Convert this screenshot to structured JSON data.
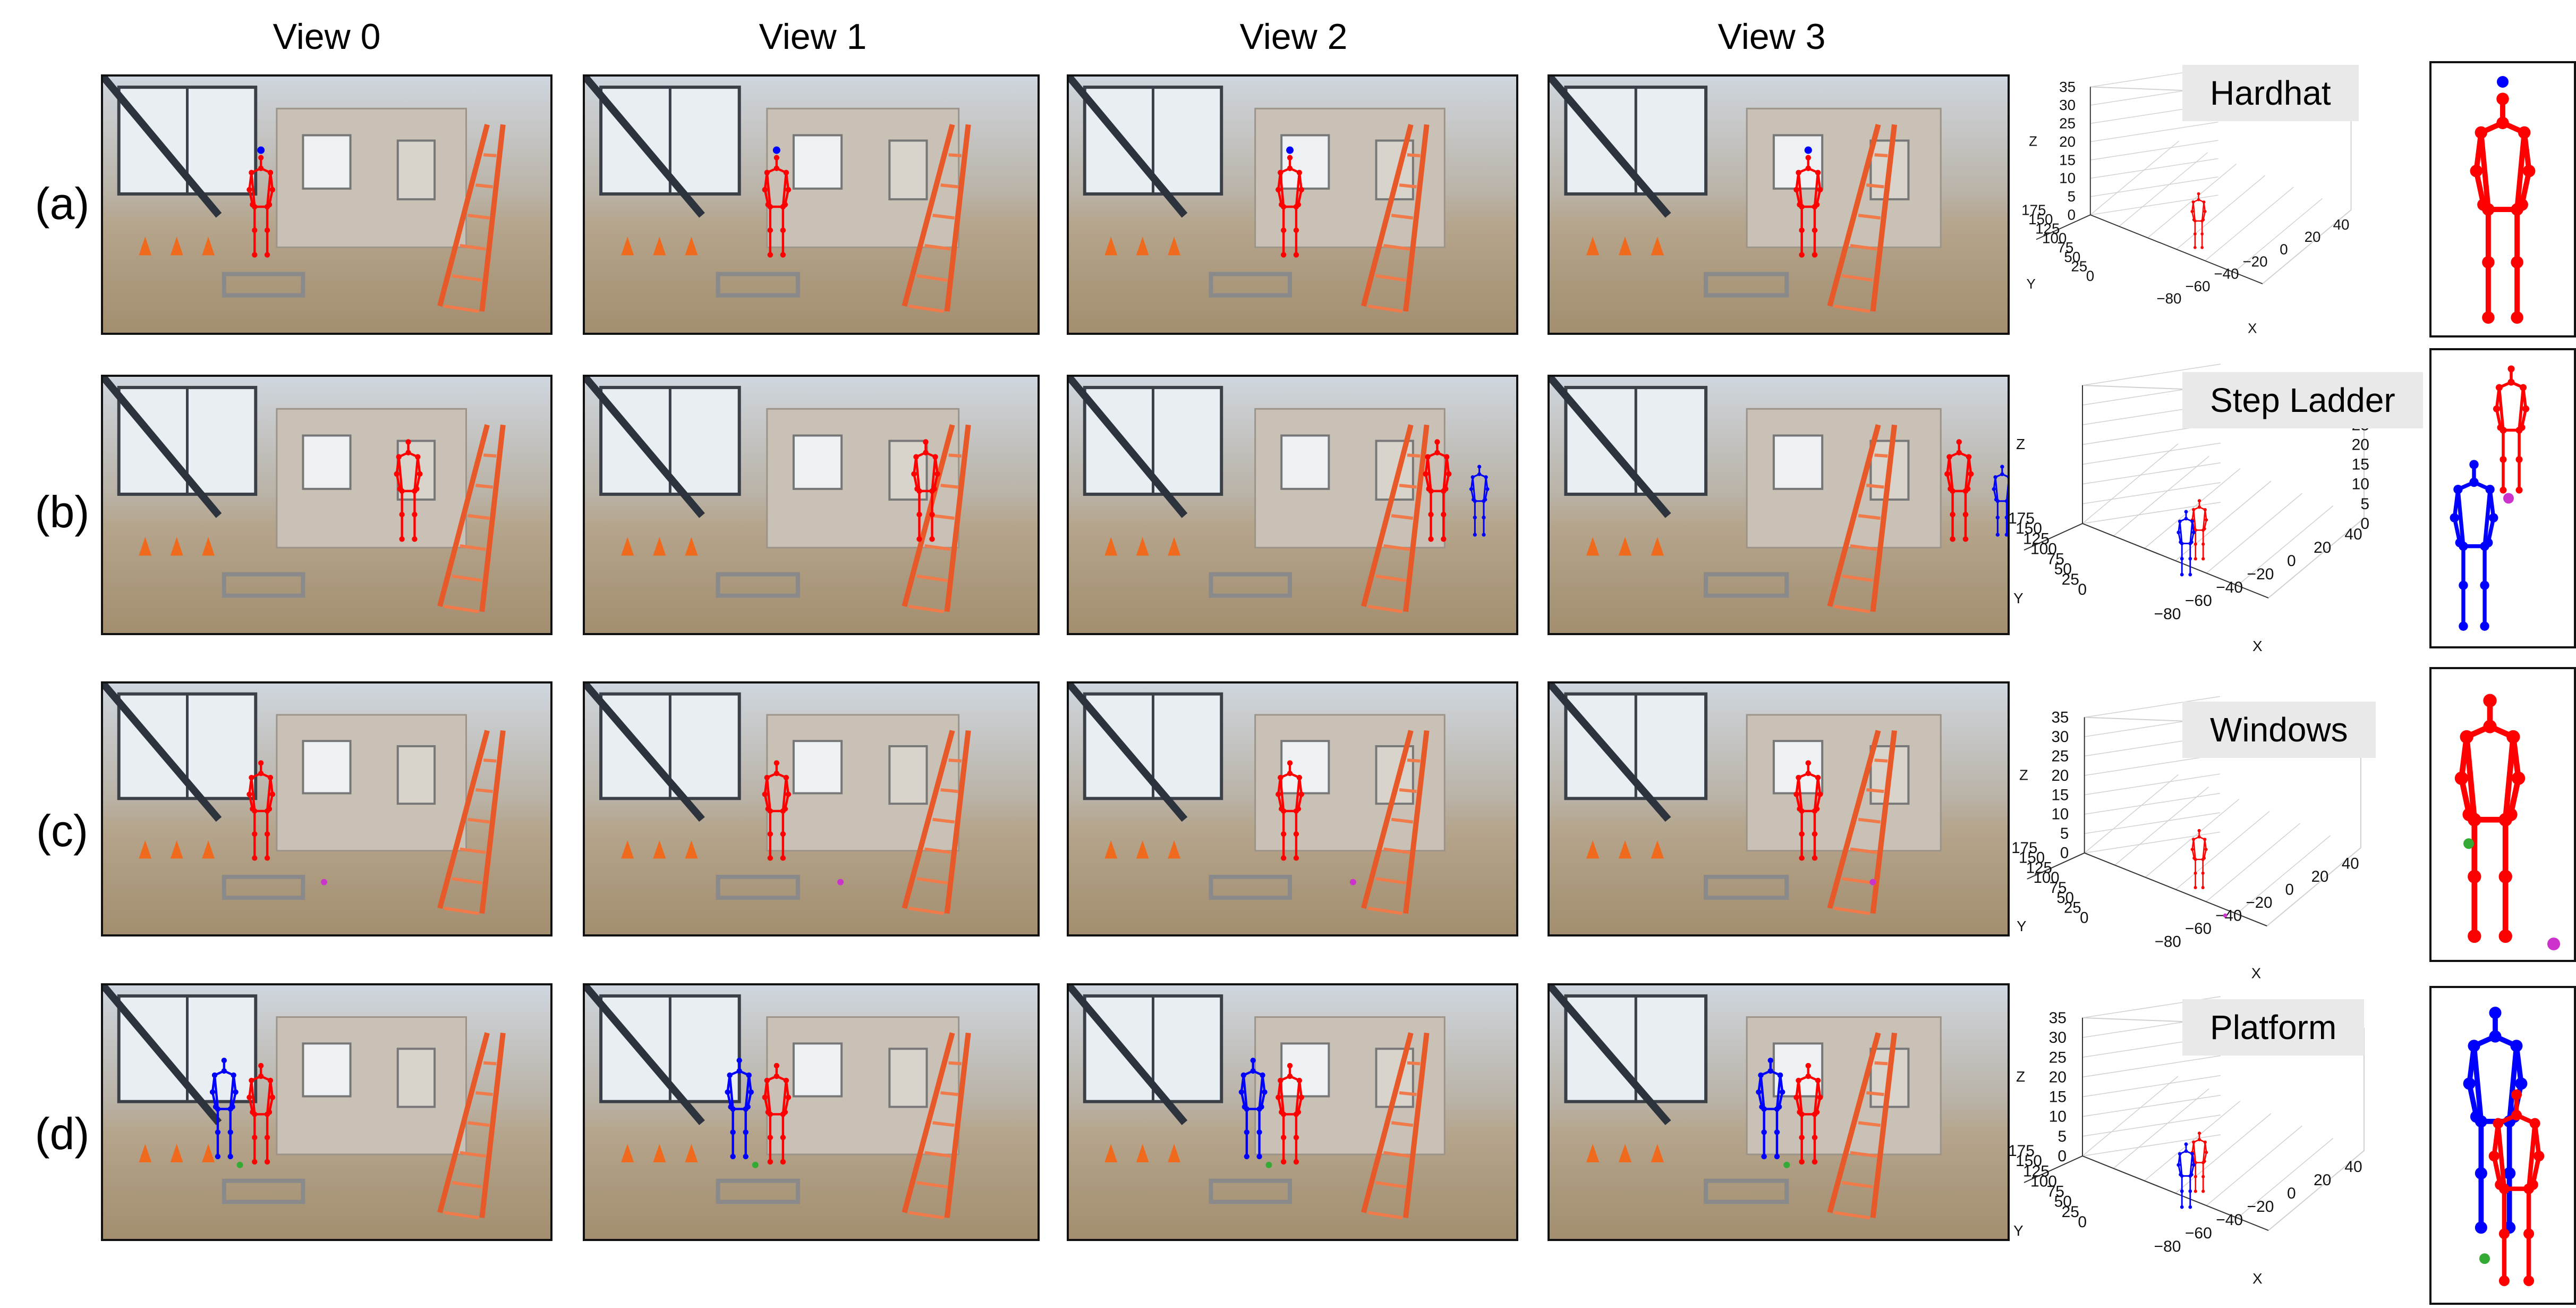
{
  "view_titles": [
    "View 0",
    "View 1",
    "View 2",
    "View 3"
  ],
  "rows": [
    {
      "label": "(a)",
      "activity": "Hardhat"
    },
    {
      "label": "(b)",
      "activity": "Step Ladder"
    },
    {
      "label": "(c)",
      "activity": "Windows"
    },
    {
      "label": "(d)",
      "activity": "Platform"
    }
  ],
  "axes": {
    "z_ticks": [
      "35",
      "30",
      "25",
      "20",
      "15",
      "10",
      "5",
      "0"
    ],
    "y_ticks": [
      "175",
      "150",
      "125",
      "100",
      "75",
      "50",
      "25",
      "0"
    ],
    "x_ticks": [
      "−80",
      "−60",
      "−40",
      "−20",
      "0",
      "20",
      "40"
    ],
    "x_label": "X",
    "y_label": "Y",
    "z_label": "Z"
  },
  "colors": {
    "worker_1": "#ff0000",
    "worker_2": "#0000ff",
    "hardhat_marker": "#0000ff",
    "object_marker": "#cc33cc",
    "contact_marker": "#33aa33"
  }
}
